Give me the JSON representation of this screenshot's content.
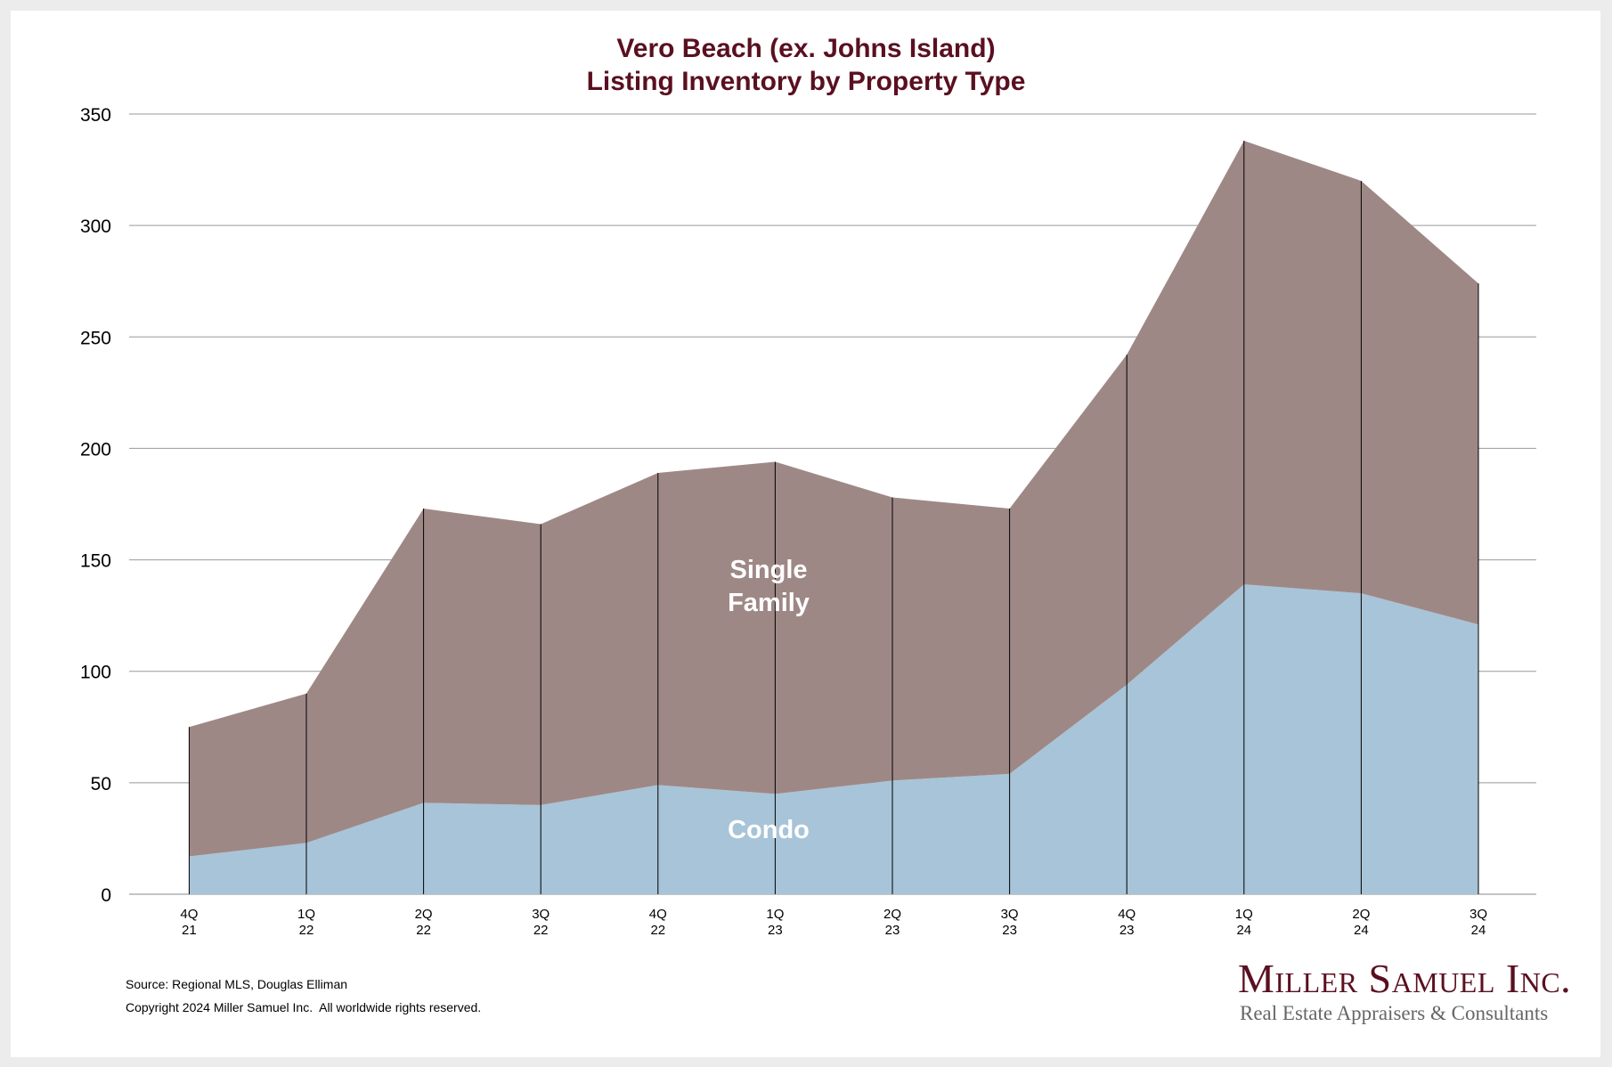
{
  "chart_data": {
    "type": "area",
    "stacked": true,
    "title": "Vero Beach (ex. Johns Island)",
    "subtitle": "Listing Inventory by Property Type",
    "xlabel": "",
    "ylabel": "",
    "ylim": [
      0,
      350
    ],
    "yticks": [
      0,
      50,
      100,
      150,
      200,
      250,
      300,
      350
    ],
    "grid": true,
    "categories": [
      [
        "4Q",
        "21"
      ],
      [
        "1Q",
        "22"
      ],
      [
        "2Q",
        "22"
      ],
      [
        "3Q",
        "22"
      ],
      [
        "4Q",
        "22"
      ],
      [
        "1Q",
        "23"
      ],
      [
        "2Q",
        "23"
      ],
      [
        "3Q",
        "23"
      ],
      [
        "4Q",
        "23"
      ],
      [
        "1Q",
        "24"
      ],
      [
        "2Q",
        "24"
      ],
      [
        "3Q",
        "24"
      ]
    ],
    "series": [
      {
        "name": "Condo",
        "color": "#a8c4d8",
        "values": [
          17,
          23,
          41,
          40,
          49,
          45,
          51,
          54,
          94,
          139,
          135,
          121
        ]
      },
      {
        "name": "Single Family",
        "color": "#9e8886",
        "values": [
          58,
          67,
          132,
          126,
          140,
          149,
          127,
          119,
          148,
          199,
          185,
          153
        ]
      }
    ],
    "annotations": {
      "single_family_line1": "Single",
      "single_family_line2": "Family",
      "condo": "Condo"
    }
  },
  "footer": {
    "source": "Source: Regional MLS, Douglas Elliman",
    "copyright": "Copyright 2024 Miller Samuel Inc.  All worldwide rights reserved."
  },
  "logo": {
    "name": "Miller Samuel Inc.",
    "tagline": "Real Estate Appraisers & Consultants"
  }
}
